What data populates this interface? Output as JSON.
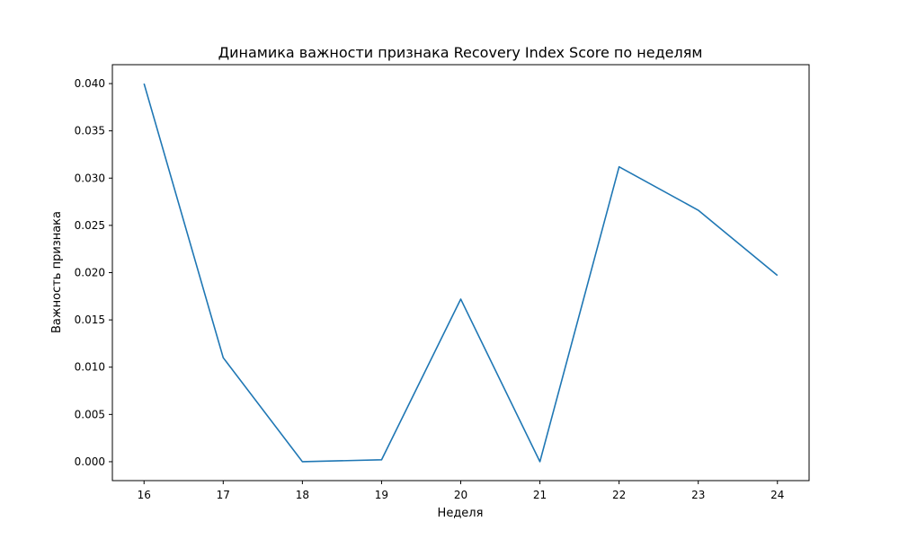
{
  "chart_data": {
    "type": "line",
    "title": "Динамика важности признака Recovery Index Score по неделям",
    "xlabel": "Неделя",
    "ylabel": "Важность признака",
    "x": [
      16,
      17,
      18,
      19,
      20,
      21,
      22,
      23,
      24
    ],
    "xticks": [
      "16",
      "17",
      "18",
      "19",
      "20",
      "21",
      "22",
      "23",
      "24"
    ],
    "yticks": [
      "0.000",
      "0.005",
      "0.010",
      "0.015",
      "0.020",
      "0.025",
      "0.030",
      "0.035",
      "0.040"
    ],
    "xlim": [
      15.6,
      24.4
    ],
    "ylim": [
      -0.002,
      0.042
    ],
    "grid": false,
    "series": [
      {
        "color": "#1f77b4",
        "values": [
          0.04,
          0.011,
          0.0,
          0.0002,
          0.0172,
          0.0,
          0.0312,
          0.0266,
          0.0197
        ]
      }
    ]
  }
}
